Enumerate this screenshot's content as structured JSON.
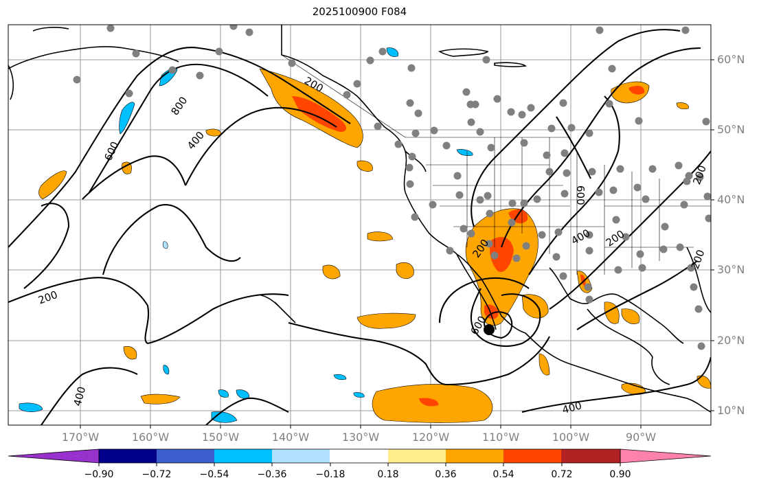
{
  "title": "2025100900 F084",
  "map": {
    "lat_labels": [
      "60°N",
      "50°N",
      "40°N",
      "30°N",
      "20°N",
      "10°N"
    ],
    "lon_labels": [
      "170°W",
      "160°W",
      "150°W",
      "140°W",
      "130°W",
      "120°W",
      "110°W",
      "100°W",
      "90°W"
    ],
    "contour_labels": [
      "600",
      "800",
      "400",
      "200",
      "200",
      "400",
      "600",
      "400",
      "200",
      "200",
      "600",
      "400",
      "200",
      "200"
    ],
    "land_color": "#ffffff",
    "coast_color": "#000000",
    "grid_color": "#999999",
    "station_color": "#808080",
    "storm_marker_color": "#000000"
  },
  "colorbar": {
    "ticks": [
      "−0.90",
      "−0.72",
      "−0.54",
      "−0.36",
      "−0.18",
      "0.18",
      "0.36",
      "0.54",
      "0.72",
      "0.90"
    ],
    "colors": [
      "#9932cc",
      "#00008b",
      "#3a5fcd",
      "#00bfff",
      "#b0e2ff",
      "#ffffff",
      "#ffec8b",
      "#ffa500",
      "#ff4500",
      "#b22222",
      "#ff82ab"
    ]
  }
}
